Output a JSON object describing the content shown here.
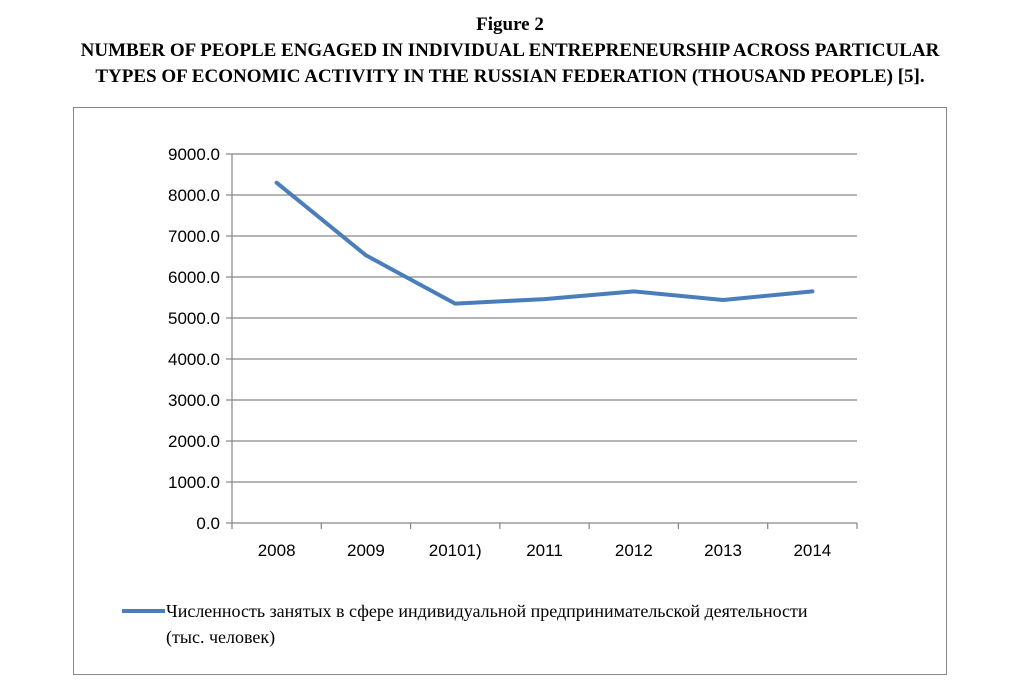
{
  "figure_label": "Figure 2",
  "figure_title_line1": "NUMBER OF PEOPLE ENGAGED IN INDIVIDUAL ENTREPRENEURSHIP ACROSS PARTICULAR",
  "figure_title_line2": "TYPES OF ECONOMIC ACTIVITY IN THE RUSSIAN FEDERATION (THOUSAND PEOPLE) [5].",
  "chart_data": {
    "type": "line",
    "categories": [
      "2008",
      "2009",
      "20101)",
      "2011",
      "2012",
      "2013",
      "2014"
    ],
    "series": [
      {
        "name": "Численность занятых в сфере индивидуальной предпринимательской деятельности (тыс. человек)",
        "name_line1": "Численность занятых в сфере индивидуальной предпринимательской деятельности",
        "name_line2": "(тыс. человек)",
        "values": [
          8300,
          6530,
          5350,
          5460,
          5650,
          5440,
          5650
        ],
        "color": "#4a7ebb"
      }
    ],
    "ylim": [
      0,
      9000
    ],
    "yticks": [
      "0.0",
      "1000.0",
      "2000.0",
      "3000.0",
      "4000.0",
      "5000.0",
      "6000.0",
      "7000.0",
      "8000.0",
      "9000.0"
    ],
    "grid": true,
    "legend_position": "bottom"
  }
}
